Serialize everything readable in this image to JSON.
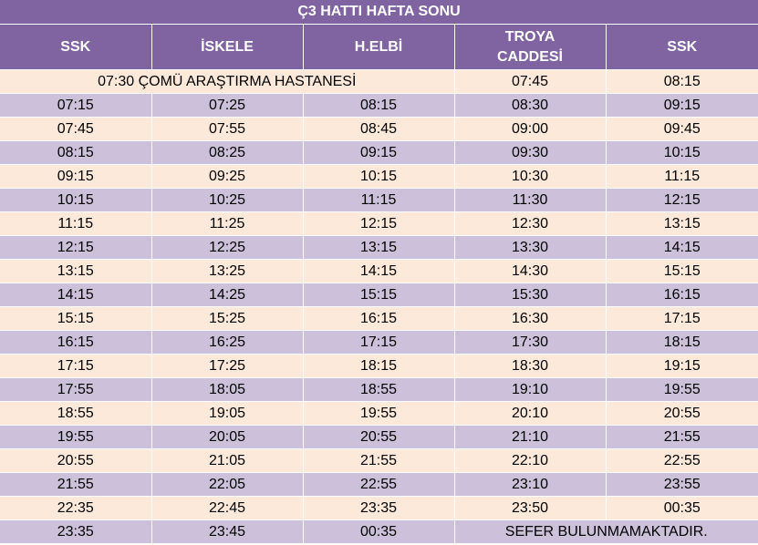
{
  "title": "Ç3 HATTI HAFTA SONU",
  "headers": [
    {
      "line1": "SSK",
      "line2": ""
    },
    {
      "line1": "İSKELE",
      "line2": ""
    },
    {
      "line1": "H.ELBİ",
      "line2": ""
    },
    {
      "line1": "TROYA",
      "line2": "CADDESİ"
    },
    {
      "line1": "SSK",
      "line2": ""
    }
  ],
  "first_row": {
    "note": "07:30 ÇOMÜ ARAŞTIRMA HASTANESİ",
    "troya": "07:45",
    "ssk": "08:15"
  },
  "rows": [
    [
      "07:15",
      "07:25",
      "08:15",
      "08:30",
      "09:15"
    ],
    [
      "07:45",
      "07:55",
      "08:45",
      "09:00",
      "09:45"
    ],
    [
      "08:15",
      "08:25",
      "09:15",
      "09:30",
      "10:15"
    ],
    [
      "09:15",
      "09:25",
      "10:15",
      "10:30",
      "11:15"
    ],
    [
      "10:15",
      "10:25",
      "11:15",
      "11:30",
      "12:15"
    ],
    [
      "11:15",
      "11:25",
      "12:15",
      "12:30",
      "13:15"
    ],
    [
      "12:15",
      "12:25",
      "13:15",
      "13:30",
      "14:15"
    ],
    [
      "13:15",
      "13:25",
      "14:15",
      "14:30",
      "15:15"
    ],
    [
      "14:15",
      "14:25",
      "15:15",
      "15:30",
      "16:15"
    ],
    [
      "15:15",
      "15:25",
      "16:15",
      "16:30",
      "17:15"
    ],
    [
      "16:15",
      "16:25",
      "17:15",
      "17:30",
      "18:15"
    ],
    [
      "17:15",
      "17:25",
      "18:15",
      "18:30",
      "19:15"
    ],
    [
      "17:55",
      "18:05",
      "18:55",
      "19:10",
      "19:55"
    ],
    [
      "18:55",
      "19:05",
      "19:55",
      "20:10",
      "20:55"
    ],
    [
      "19:55",
      "20:05",
      "20:55",
      "21:10",
      "21:55"
    ],
    [
      "20:55",
      "21:05",
      "21:55",
      "22:10",
      "22:55"
    ],
    [
      "21:55",
      "22:05",
      "22:55",
      "23:10",
      "23:55"
    ],
    [
      "22:35",
      "22:45",
      "23:35",
      "23:50",
      "00:35"
    ]
  ],
  "last_row": {
    "ssk": "23:35",
    "iskele": "23:45",
    "helbi": "00:35",
    "note": "SEFER BULUNMAMAKTADIR."
  },
  "colors": {
    "header": "#8064a2",
    "row_light": "#fde9d9",
    "row_dark": "#ccc0da",
    "header_text": "#ffffff"
  }
}
